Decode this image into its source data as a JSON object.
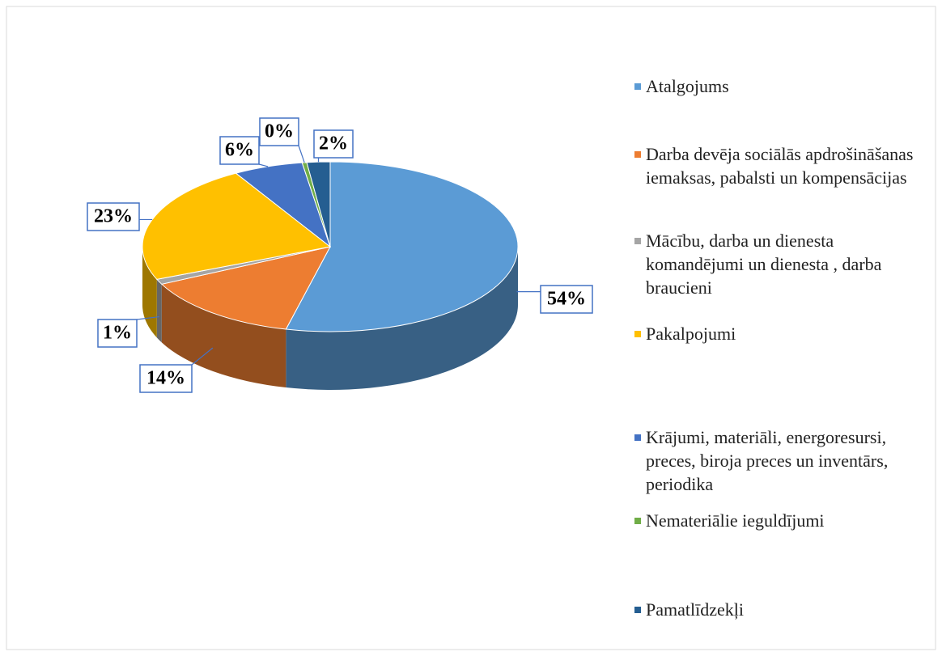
{
  "chart_data": {
    "type": "pie",
    "categories": [
      "Atalgojums",
      "Darba devēja sociālās apdrošināšanas iemaksas, pabalsti un kompensācijas",
      "Mācību, darba un dienesta komandējumi un dienesta , darba braucieni",
      "Pakalpojumi",
      "Krājumi, materiāli, energoresursi, preces, biroja preces un inventārs, periodika",
      "Nemateriālie ieguldījumi",
      "Pamatlīdzekļi"
    ],
    "values": [
      54,
      14,
      1,
      23,
      6,
      0.4,
      2
    ],
    "value_labels": [
      "54%",
      "14%",
      "1%",
      "23%",
      "6%",
      "0%",
      "2%"
    ],
    "colors": [
      "#5b9bd5",
      "#ed7d31",
      "#a5a5a5",
      "#ffc000",
      "#4472c4",
      "#70ad47",
      "#255e91"
    ],
    "legend": "right"
  }
}
